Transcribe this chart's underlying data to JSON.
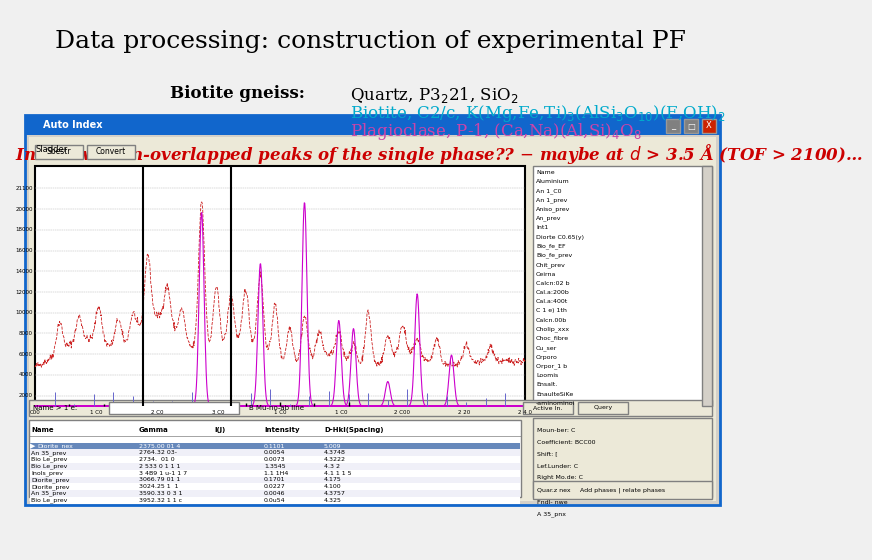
{
  "title": "Data processing: construction of experimental PF",
  "title_fontsize": 18,
  "title_font": "serif",
  "bg_color": "#f0f0f0",
  "window_title": "Auto Index",
  "window_title_color": "#1166cc",
  "window_border_color": "#1166cc",
  "window_bg": "#d4d0c8",
  "inner_bg": "#ece9d8",
  "chart_bg": "white",
  "phase_list": [
    "Name",
    "Aluminium",
    "An 1_C0",
    "An 1_prev",
    "Aniso_prev",
    "An_prev",
    "Int1",
    "Diorte C0.65(y)",
    "Bio_fe_EF",
    "Bio_fe_prev",
    "Chit_prev",
    "Ceirna",
    "Calcn:02 b",
    "Cal.a:200b",
    "Cal.a:400t",
    "C 1 e) 1th",
    "Calcn.00b",
    "Cholip_xxx",
    "Choc_fibre",
    "Cu_ser",
    "Orporo",
    "Orpor_1 b",
    "Loomis",
    "Ensalt.",
    "EnaulteSiKe",
    "-aminominoi"
  ],
  "table_rows": [
    [
      "Diorite_nex",
      "2375.00 01 4",
      "",
      "0.1101",
      "5.009"
    ],
    [
      "An 35_prev",
      "2764.32 03-",
      "",
      "0.0054",
      "4.3748"
    ],
    [
      "Bio Le_prev",
      "2734.  01 0",
      "",
      "0.0073",
      "4.3222"
    ],
    [
      "Bio Le_prev",
      "2 533 0 1 1 1",
      "",
      "1.3545",
      "4.3 2"
    ],
    [
      "Inols_prev",
      "3 4B9 1 u-1 1 7",
      "",
      "1.1 1H4",
      "4.1 1 1 5"
    ],
    [
      "Diorite_prev",
      "3066.79 01 1",
      "",
      "0.1701",
      "4.175"
    ],
    [
      "Diorite_prev",
      "3024.25 1  1",
      "",
      "0.0227",
      "4.100"
    ],
    [
      "An 35_prev",
      "3590.33 0 3 1",
      "",
      "0.0046",
      "4.3757"
    ],
    [
      "Bio Le_prev",
      "3952.32 1 1 c",
      "",
      "0.0u54",
      "4.325"
    ]
  ],
  "form_labels": [
    "Moun-ber: C",
    "Coefficient: BCC00",
    "Shift: [",
    "Lef.Lunder: C",
    "Right Mo.de: C",
    "Quar.z nex",
    "Fndl- nwe",
    "A 35_pnx"
  ],
  "quartz_line": "Quartz, P3−21, SiO₂",
  "biotite_line": "Biotite, C2/c, K(Mg,Fe,Ti)₃(AlSi₃O₁₀)(F,OH)₂",
  "plagio_line": "Plagioclase, P-1, (Ca,Na)(Al,Si)₄O₈",
  "red_line_1": "Intensive non-overlapped peaks of the single phase??",
  "red_line_2": " – maybe at d > 3.5 Å (TOF > 2100)…",
  "biotite_color": "#00aacc",
  "plagio_color": "#cc44aa",
  "red_color": "#cc0000"
}
